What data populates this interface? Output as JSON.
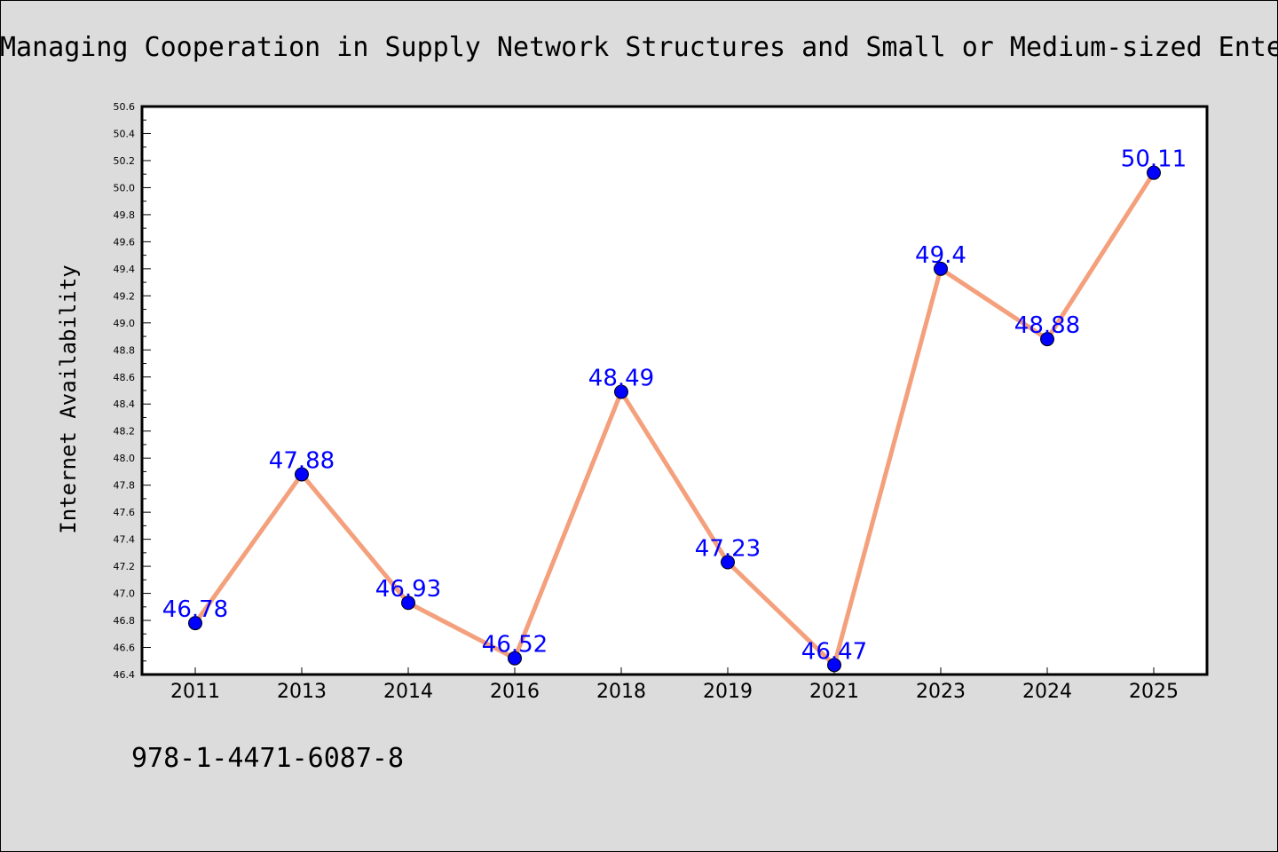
{
  "title": "Managing Cooperation in Supply Network Structures and Small or Medium-sized Ente",
  "footer": "978-1-4471-6087-8",
  "colors": {
    "background": "#dcdcdc",
    "plot_background": "#ffffff",
    "line": "#f4a07c",
    "marker": "#0000ff",
    "data_label": "#0000ff"
  },
  "chart_data": {
    "type": "line",
    "title": "Managing Cooperation in Supply Network Structures and Small or Medium-sized Ente",
    "xlabel": "",
    "ylabel": "Internet Availability",
    "categories": [
      "2011",
      "2013",
      "2014",
      "2016",
      "2018",
      "2019",
      "2021",
      "2023",
      "2024",
      "2025"
    ],
    "series": [
      {
        "values": [
          46.78,
          47.88,
          46.93,
          46.52,
          48.49,
          47.23,
          46.47,
          49.4,
          48.88,
          50.11
        ],
        "labels": [
          "46.78",
          "47.88",
          "46.93",
          "46.52",
          "48.49",
          "47.23",
          "46.47",
          "49.4",
          "48.88",
          "50.11"
        ]
      }
    ],
    "ylim": [
      46.4,
      50.6
    ],
    "yticks": [
      "46.4",
      "46.6",
      "46.8",
      "47.0",
      "47.2",
      "47.4",
      "47.6",
      "47.8",
      "48.0",
      "48.2",
      "48.4",
      "48.6",
      "48.8",
      "49.0",
      "49.2",
      "49.4",
      "49.6",
      "49.8",
      "50.0",
      "50.2",
      "50.4",
      "50.6"
    ],
    "grid": false,
    "legend": "none"
  }
}
